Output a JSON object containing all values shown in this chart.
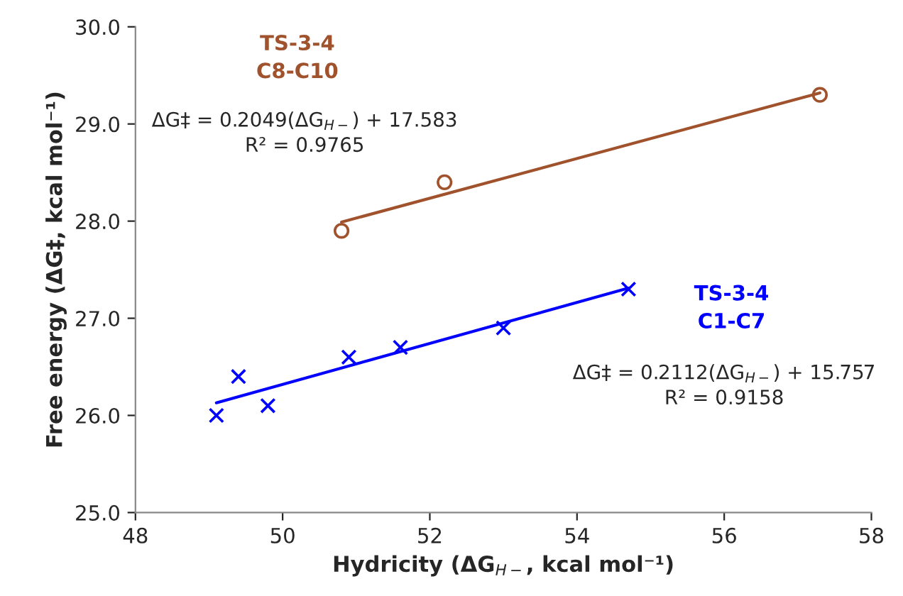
{
  "chart_data": {
    "type": "scatter",
    "xlabel": "Hydricity (ΔG$_{H−}$, kcal mol⁻¹)",
    "ylabel": "Free energy (ΔG‡, kcal mol⁻¹)",
    "xlim": [
      48,
      58
    ],
    "xticks": [
      48,
      50,
      52,
      54,
      56,
      58
    ],
    "ylim": [
      25,
      30
    ],
    "yticks": [
      {
        "value": 25,
        "label": "25.0"
      },
      {
        "value": 26,
        "label": "26.0"
      },
      {
        "value": 27,
        "label": "27.0"
      },
      {
        "value": 28,
        "label": "28.0"
      },
      {
        "value": 29,
        "label": "29.0"
      },
      {
        "value": 30,
        "label": "30.0"
      }
    ],
    "grid": false,
    "legend": false,
    "series": [
      {
        "name": "TS-3-4\nC8-C10",
        "color": "#a0522d",
        "marker": "circle",
        "x": [
          50.8,
          52.2,
          57.3
        ],
        "values": [
          27.9,
          28.4,
          29.3
        ]
      },
      {
        "type": "line",
        "color": "#a0522d",
        "marker": "none",
        "x": [
          50.8,
          57.3
        ],
        "values": [
          27.99,
          29.32
        ]
      },
      {
        "name": "TS-3-4\nC1-C7",
        "color": "#0000ff",
        "marker": "cross",
        "x": [
          49.1,
          49.4,
          49.8,
          50.9,
          51.6,
          53.0,
          54.7
        ],
        "values": [
          26.0,
          26.4,
          26.1,
          26.6,
          26.7,
          26.9,
          27.3
        ]
      },
      {
        "type": "line",
        "color": "#0000ff",
        "marker": "none",
        "x": [
          49.1,
          54.7
        ],
        "values": [
          26.13,
          27.31
        ]
      }
    ],
    "annotations": [
      "ΔG‡ = 0.2049(ΔG$_{H−}$) + 17.583\nR² = 0.9765",
      "ΔG‡ = 0.2112(ΔG$_{H−}$) + 15.757\nR² = 0.9158"
    ]
  }
}
